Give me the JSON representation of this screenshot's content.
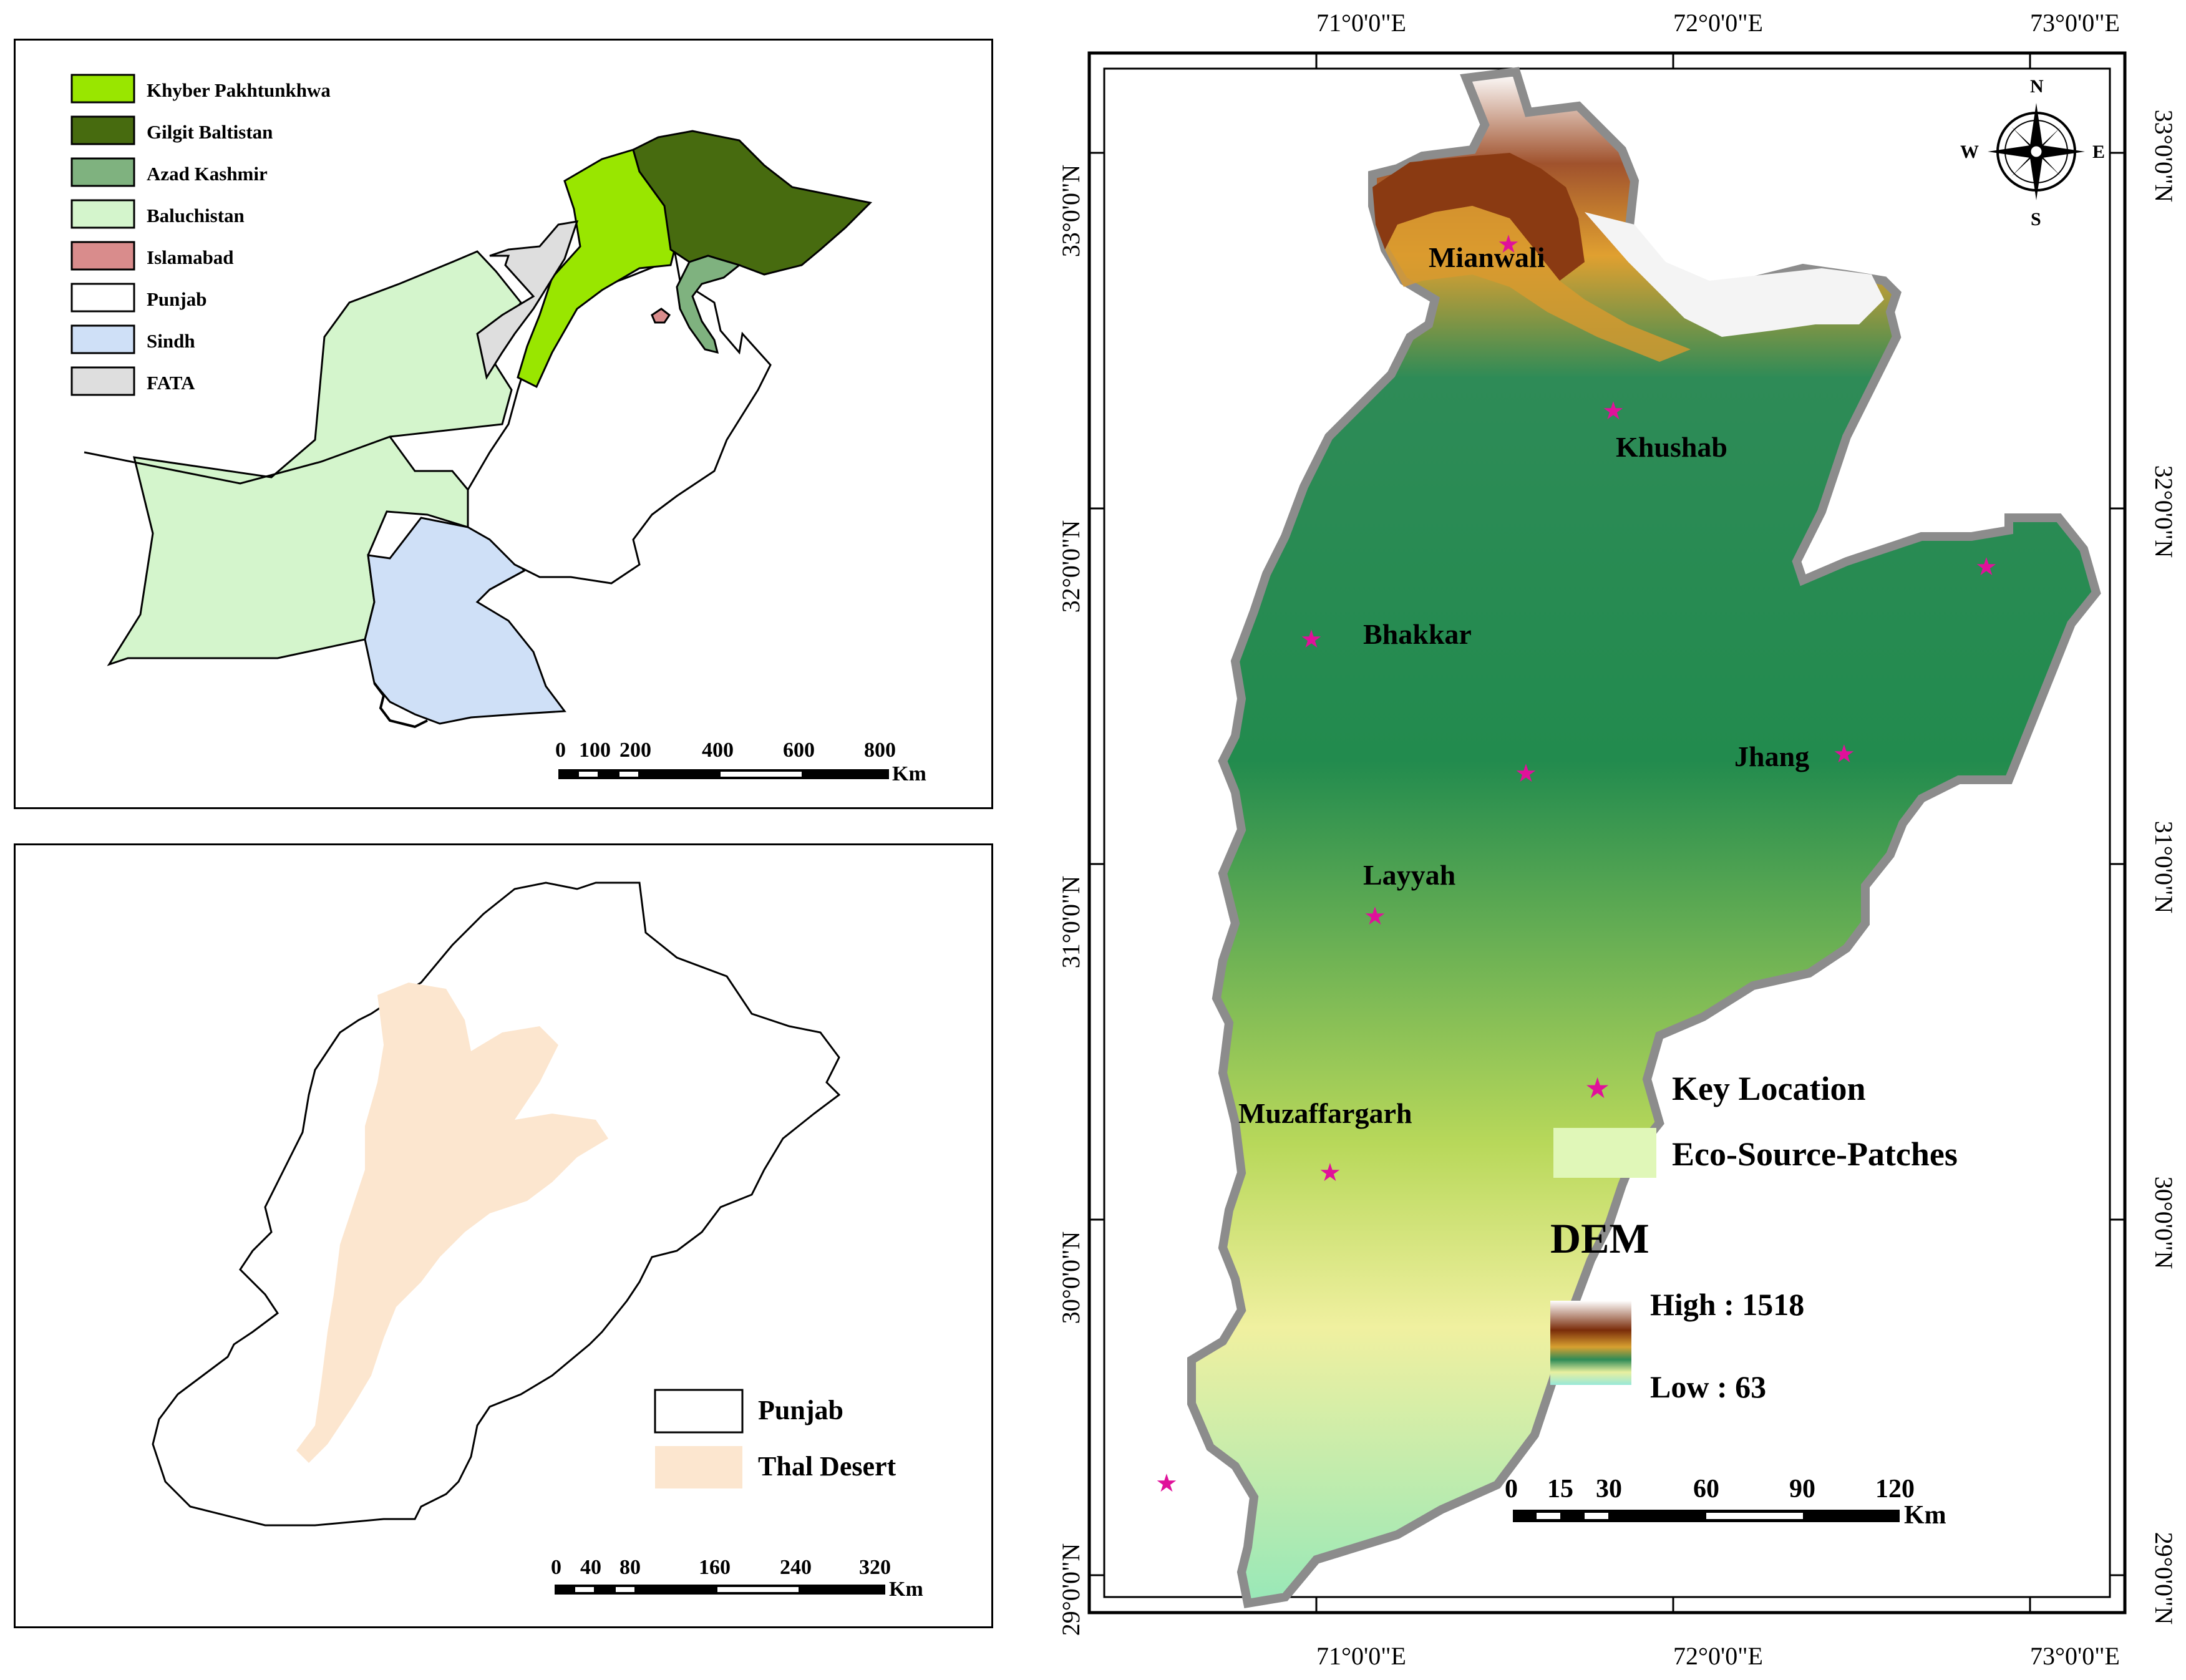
{
  "pakistan_panel": {
    "legend": [
      {
        "label": "Khyber Pakhtunkhwa",
        "color": "#99e600"
      },
      {
        "label": "Gilgit Baltistan",
        "color": "#476b0f"
      },
      {
        "label": "Azad Kashmir",
        "color": "#7fb27f"
      },
      {
        "label": "Baluchistan",
        "color": "#d4f5cc"
      },
      {
        "label": "Islamabad",
        "color": "#d98c8c"
      },
      {
        "label": "Punjab",
        "color": "#ffffff"
      },
      {
        "label": "Sindh",
        "color": "#cfe0f7"
      },
      {
        "label": "FATA",
        "color": "#dedede"
      }
    ],
    "scale": {
      "ticks": [
        "0",
        "100",
        "200",
        "400",
        "600",
        "800"
      ],
      "unit": "Km"
    }
  },
  "punjab_panel": {
    "legend": [
      {
        "label": "Punjab",
        "color": "#ffffff"
      },
      {
        "label": "Thal Desert",
        "color": "#fce6cf"
      }
    ],
    "scale": {
      "ticks": [
        "0",
        "40",
        "80",
        "160",
        "240",
        "320"
      ],
      "unit": "Km"
    }
  },
  "dem_panel": {
    "lon_labels": [
      "71°0'0\"E",
      "72°0'0\"E",
      "73°0'0\"E"
    ],
    "lat_labels": [
      "33°0'0\"N",
      "32°0'0\"N",
      "31°0'0\"N",
      "30°0'0\"N",
      "29°0'0\"N"
    ],
    "compass": {
      "n": "N",
      "s": "S",
      "e": "E",
      "w": "W"
    },
    "places": [
      "Mianwali",
      "Khushab",
      "Bhakkar",
      "Jhang",
      "Layyah",
      "Muzaffargarh"
    ],
    "key_location_label": "Key Location",
    "eco_label": "Eco-Source-Patches",
    "dem_title": "DEM",
    "dem_high": "High : 1518",
    "dem_low": "Low : 63",
    "scale": {
      "ticks": [
        "0",
        "15",
        "30",
        "60",
        "90",
        "120"
      ],
      "unit": "Km"
    },
    "colors": {
      "star": "#e0119a",
      "eco": "#e0f7b8"
    }
  }
}
